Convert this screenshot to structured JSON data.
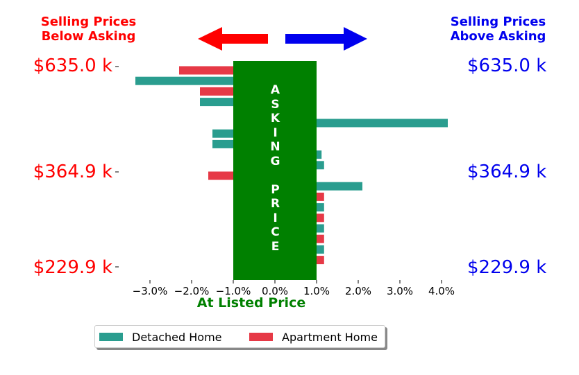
{
  "header": {
    "left_line1": "Selling Prices",
    "left_line2": "Below Asking",
    "right_line1": "Selling Prices",
    "right_line2": "Above Asking"
  },
  "center_label": "At Listed Price",
  "asking_letters": [
    "A",
    "S",
    "K",
    "I",
    "N",
    "G",
    "",
    "P",
    "R",
    "I",
    "C",
    "E"
  ],
  "legend": {
    "detached_label": "Detached Home",
    "apartment_label": "Apartment Home"
  },
  "colors": {
    "detached": "#2a9d8f",
    "apartment": "#e63946",
    "asking_band": "#008000",
    "below": "#ff0000",
    "above": "#0000ee"
  },
  "y_ticks": [
    "$635.0 k",
    "$364.9 k",
    "$229.9 k"
  ],
  "chart_data": {
    "type": "bar",
    "orientation": "horizontal",
    "xlim": [
      -3.5,
      4.4
    ],
    "x_tick_values": [
      -3.0,
      -2.0,
      -1.0,
      0.0,
      1.0,
      2.0,
      3.0,
      4.0
    ],
    "x_tick_labels": [
      "−3.0%",
      "−2.0%",
      "−1.0%",
      "0.0%",
      "1.0%",
      "2.0%",
      "3.0%",
      "4.0%"
    ],
    "series": [
      {
        "name": "Detached Home",
        "bars": [
          {
            "row": 1,
            "value": -3.35
          },
          {
            "row": 3,
            "value": -1.8
          },
          {
            "row": 5,
            "value": 4.15
          },
          {
            "row": 6,
            "value": -1.5
          },
          {
            "row": 7,
            "value": -1.5
          },
          {
            "row": 8,
            "value": 1.12
          },
          {
            "row": 9,
            "value": 1.18
          },
          {
            "row": 11,
            "value": 2.1
          },
          {
            "row": 13,
            "value": 1.18
          },
          {
            "row": 15,
            "value": 1.18
          },
          {
            "row": 17,
            "value": 1.18
          }
        ]
      },
      {
        "name": "Apartment Home",
        "bars": [
          {
            "row": 0,
            "value": -2.3
          },
          {
            "row": 2,
            "value": -1.8
          },
          {
            "row": 10,
            "value": -1.6
          },
          {
            "row": 12,
            "value": 1.18
          },
          {
            "row": 14,
            "value": 1.18
          },
          {
            "row": 16,
            "value": 1.18
          },
          {
            "row": 18,
            "value": 1.18
          }
        ]
      }
    ],
    "asking_band": [
      -1.0,
      1.0
    ]
  }
}
